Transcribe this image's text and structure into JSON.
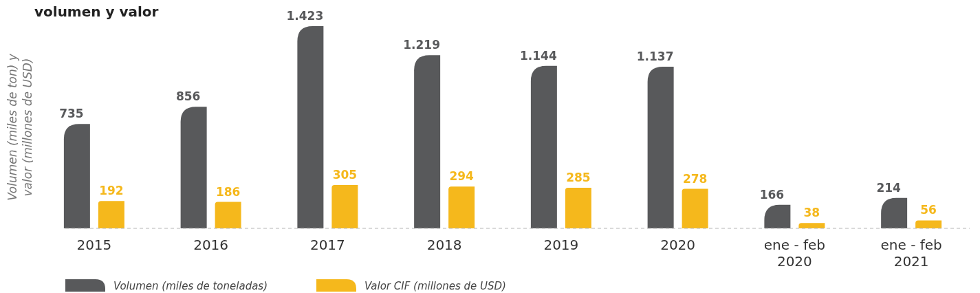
{
  "chart_data": {
    "type": "bar",
    "title": "volumen y valor",
    "ylabel": "Volumen (miles de ton) y\nvalor (millones de USD)",
    "categories": [
      "2015",
      "2016",
      "2017",
      "2018",
      "2019",
      "2020",
      "ene - feb\n2020",
      "ene - feb\n2021"
    ],
    "series": [
      {
        "name": "Volumen (miles de toneladas)",
        "color": "#58595b",
        "values": [
          735,
          856,
          1423,
          1219,
          1144,
          1137,
          166,
          214
        ],
        "value_labels": [
          "735",
          "856",
          "1.423",
          "1.219",
          "1.144",
          "1.137",
          "166",
          "214"
        ]
      },
      {
        "name": "Valor CIF (millones de USD)",
        "color": "#f5b81c",
        "values": [
          192,
          186,
          305,
          294,
          285,
          278,
          38,
          56
        ],
        "value_labels": [
          "192",
          "186",
          "305",
          "294",
          "285",
          "278",
          "38",
          "56"
        ]
      }
    ],
    "legend": "bottom"
  }
}
